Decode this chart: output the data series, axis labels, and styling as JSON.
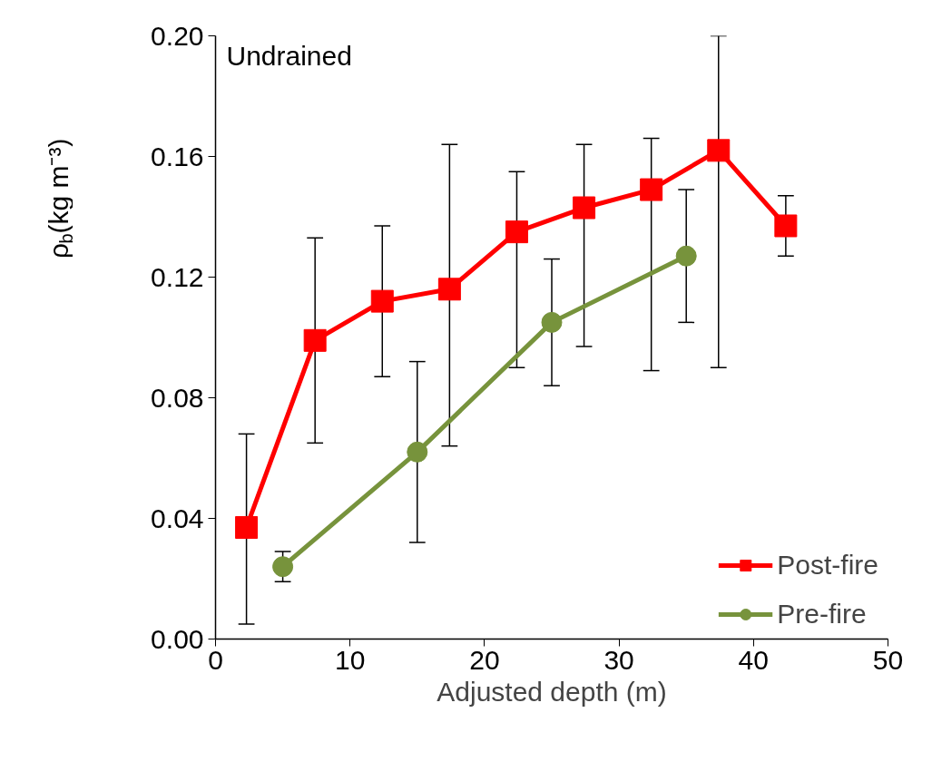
{
  "chart_data": {
    "type": "line",
    "xlabel": "Adjusted depth (m)",
    "ylabel": "ρ$_{b}$(kg m⁻³)",
    "annotations": [
      "Undrained"
    ],
    "xlim": [
      0,
      50
    ],
    "xticks": [
      0,
      10,
      20,
      30,
      40,
      50
    ],
    "ylim": [
      0,
      0.2
    ],
    "yticks": [
      {
        "value": 0,
        "label": "0.00"
      },
      {
        "value": 0.04,
        "label": "0.04"
      },
      {
        "value": 0.08,
        "label": "0.08"
      },
      {
        "value": 0.12,
        "label": "0.12"
      },
      {
        "value": 0.16,
        "label": "0.16"
      },
      {
        "value": 0.2,
        "label": "0.20"
      }
    ],
    "grid": false,
    "legend": "bottom right",
    "line_style": "solid",
    "series": [
      {
        "name": "Post-fire",
        "color": "#ff0000",
        "marker": "square",
        "x": [
          2.3,
          7.4,
          12.4,
          17.4,
          22.4,
          27.4,
          32.4,
          37.4,
          42.4
        ],
        "values": [
          0.037,
          0.099,
          0.112,
          0.116,
          0.135,
          0.143,
          0.149,
          0.162,
          0.137
        ],
        "errors": [
          [
            0.005,
            0.068
          ],
          [
            0.065,
            0.133
          ],
          [
            0.087,
            0.137
          ],
          [
            0.064,
            0.164
          ],
          [
            0.09,
            0.155
          ],
          [
            0.097,
            0.164
          ],
          [
            0.089,
            0.166
          ],
          [
            0.09,
            0.2
          ],
          [
            0.127,
            0.147
          ]
        ]
      },
      {
        "name": "Pre-fire",
        "color": "#77933c",
        "marker": "circle",
        "x": [
          5,
          15,
          25,
          35
        ],
        "values": [
          0.024,
          0.062,
          0.105,
          0.127
        ],
        "errors": [
          [
            0.019,
            0.029
          ],
          [
            0.032,
            0.092
          ],
          [
            0.084,
            0.126
          ],
          [
            0.105,
            0.149
          ]
        ]
      }
    ]
  }
}
